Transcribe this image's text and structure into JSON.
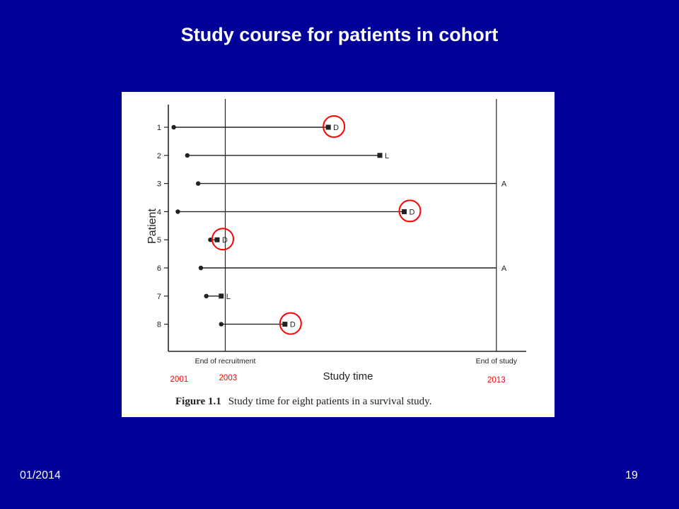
{
  "slide": {
    "title": "Study course for patients in cohort",
    "footer_date": "01/2014",
    "page_number": "19"
  },
  "colors": {
    "background": "#000099",
    "annotation": "#ff0000",
    "ink": "#222222"
  },
  "chart_data": {
    "type": "timeline",
    "ylabel": "Patient",
    "xlabel": "Study time",
    "caption_prefix": "Figure 1.1",
    "caption_text": "Study time for eight patients in a survival study.",
    "reference_lines": [
      {
        "label": "End of recruitment",
        "x": 2003
      },
      {
        "label": "End of study",
        "x": 2013
      }
    ],
    "year_annotations": [
      "2001",
      "2003",
      "2013"
    ],
    "xlim": [
      2000.9,
      2014.1
    ],
    "patients": [
      {
        "id": "1",
        "start": 2001.1,
        "end": 2006.8,
        "outcome": "D",
        "circled": true
      },
      {
        "id": "2",
        "start": 2001.6,
        "end": 2008.7,
        "outcome": "L",
        "circled": false
      },
      {
        "id": "3",
        "start": 2002.0,
        "end": 2013.0,
        "outcome": "A",
        "circled": false
      },
      {
        "id": "4",
        "start": 2001.25,
        "end": 2009.6,
        "outcome": "D",
        "circled": true
      },
      {
        "id": "5",
        "start": 2002.45,
        "end": 2002.7,
        "outcome": "D",
        "circled": true
      },
      {
        "id": "6",
        "start": 2002.1,
        "end": 2013.0,
        "outcome": "A",
        "circled": false
      },
      {
        "id": "7",
        "start": 2002.3,
        "end": 2002.85,
        "outcome": "L",
        "circled": false
      },
      {
        "id": "8",
        "start": 2002.85,
        "end": 2005.2,
        "outcome": "D",
        "circled": true
      }
    ]
  }
}
